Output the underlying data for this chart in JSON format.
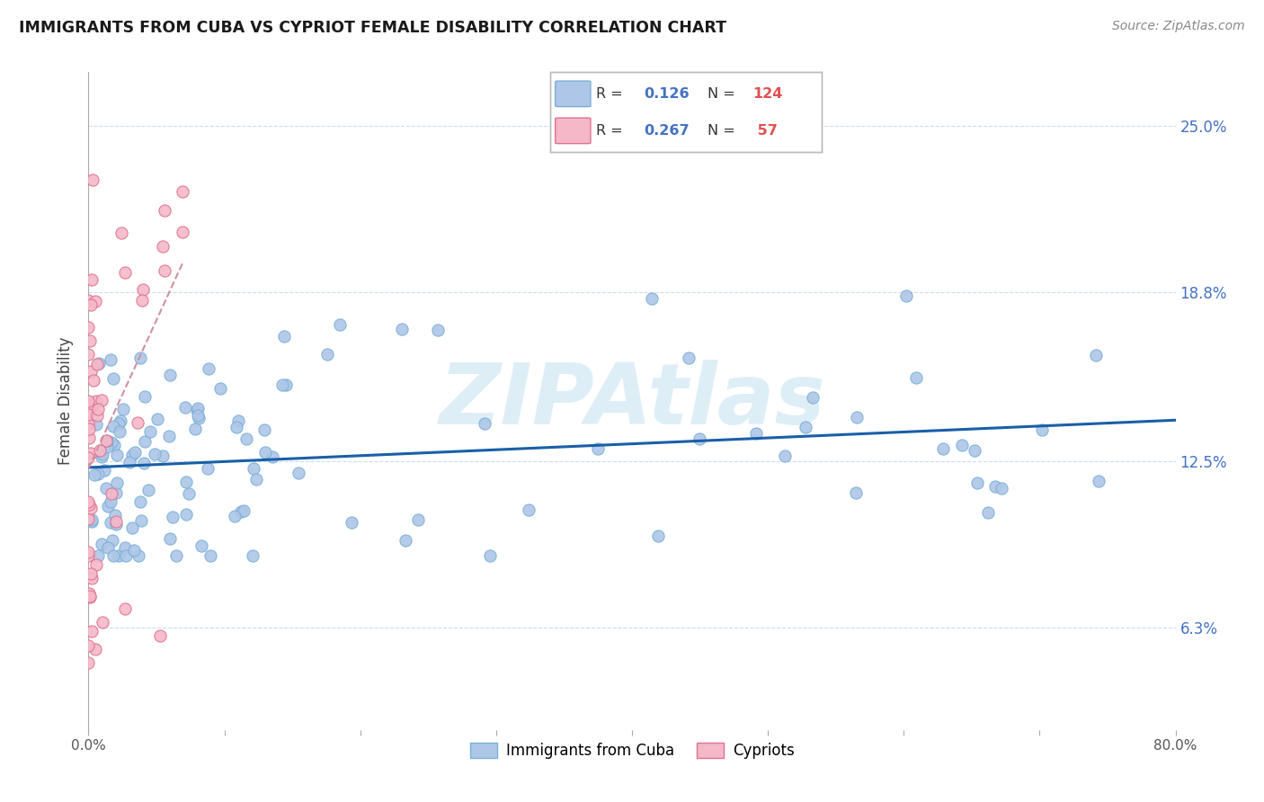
{
  "title": "IMMIGRANTS FROM CUBA VS CYPRIOT FEMALE DISABILITY CORRELATION CHART",
  "source": "Source: ZipAtlas.com",
  "ylabel": "Female Disability",
  "ylabel_ticks": [
    "6.3%",
    "12.5%",
    "18.8%",
    "25.0%"
  ],
  "ylabel_values": [
    0.063,
    0.125,
    0.188,
    0.25
  ],
  "xlim": [
    0.0,
    0.8
  ],
  "ylim": [
    0.025,
    0.27
  ],
  "legend": {
    "R1": "0.126",
    "N1": "124",
    "R2": "0.267",
    "N2": "57"
  },
  "cuba_color": "#aec6e8",
  "cuba_edge": "#7ab0d4",
  "cypriot_color": "#f4b8c8",
  "cypriot_edge": "#e07090",
  "trendline_cuba_color": "#1a5fa8",
  "trendline_cypriot_color": "#d090a0",
  "watermark": "ZIPAtlas",
  "watermark_color": "#d0e8f5",
  "grid_color": "#c8d8ec",
  "legend_box_color": "#dddddd",
  "r_color": "#4472c4",
  "n_color": "#e05050",
  "bottom_legend_items": [
    "Immigrants from Cuba",
    "Cypriots"
  ]
}
